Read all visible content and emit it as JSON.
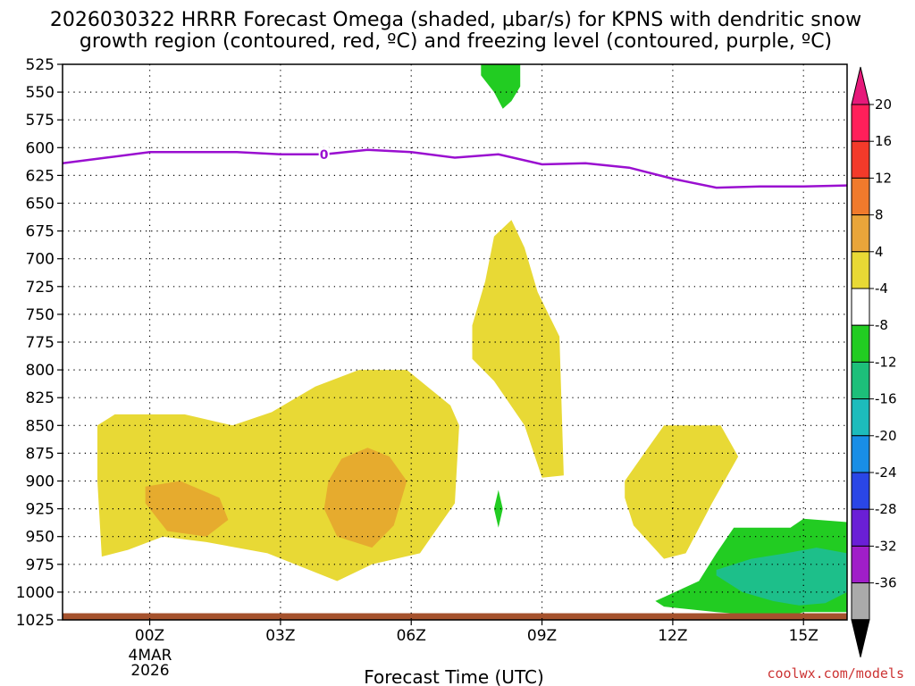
{
  "chart_data": {
    "type": "contour",
    "title_line1": "2026030322 HRRR Forecast Omega (shaded, µbar/s) for KPNS with dendritic snow",
    "title_line2": "growth region (contoured, red, ºC) and freezing level (contoured, purple, ºC)",
    "xlabel": "Forecast Time (UTC)",
    "credit": "coolwx.com/models",
    "x_ticks": [
      "00Z",
      "03Z",
      "06Z",
      "09Z",
      "12Z",
      "15Z"
    ],
    "x_tick_hours": [
      0,
      3,
      6,
      9,
      12,
      15
    ],
    "x_date_line1": "4MAR",
    "x_date_line2": "2026",
    "xlim": [
      -2,
      16
    ],
    "ylim": [
      1025,
      525
    ],
    "y_ticks": [
      "525",
      "550",
      "575",
      "600",
      "625",
      "650",
      "675",
      "700",
      "725",
      "750",
      "775",
      "800",
      "825",
      "850",
      "875",
      "900",
      "925",
      "950",
      "975",
      "1000",
      "1025"
    ],
    "y_tick_values": [
      525,
      550,
      575,
      600,
      625,
      650,
      675,
      700,
      725,
      750,
      775,
      800,
      825,
      850,
      875,
      900,
      925,
      950,
      975,
      1000,
      1025
    ],
    "colorbar": {
      "labels": [
        "20",
        "16",
        "12",
        "8",
        "4",
        "-4",
        "-8",
        "-12",
        "-16",
        "-20",
        "-24",
        "-28",
        "-32",
        "-36"
      ],
      "colors": [
        "#ff1f5a",
        "#f33a2a",
        "#f07a2c",
        "#e9a53a",
        "#e8d935",
        "#ffffff",
        "#22cc22",
        "#1dbf7a",
        "#1dbcbc",
        "#198ee6",
        "#2a46e6",
        "#6a1fd6",
        "#a01ec8",
        "#aaaaaa"
      ],
      "top_arrow_color": "#e6197a",
      "bottom_arrow_color": "#000000"
    },
    "freezing_level": {
      "label": "0",
      "color": "#9a0fd0",
      "hours": [
        -2,
        -1,
        0,
        1,
        2,
        3,
        4,
        5,
        6,
        7,
        8,
        9,
        10,
        11,
        12,
        13,
        14,
        15,
        16
      ],
      "pressures": [
        614,
        609,
        604,
        604,
        604,
        606,
        606,
        602,
        604,
        609,
        606,
        615,
        614,
        618,
        628,
        636,
        635,
        635,
        634
      ]
    },
    "omega_regions": [
      {
        "value_range": "4 to 8",
        "color": "#e8d935",
        "hours": [
          -1.2,
          -0.8,
          0.8,
          1.9,
          2.8,
          3.8,
          4.8,
          5.9,
          6.9,
          7.1,
          7.0,
          6.2,
          5.1,
          4.3,
          2.7,
          1.3,
          0.3,
          -0.5,
          -1.1,
          -1.2
        ],
        "pressures": [
          850,
          840,
          840,
          850,
          838,
          815,
          800,
          800,
          832,
          850,
          920,
          965,
          975,
          990,
          965,
          955,
          950,
          962,
          968,
          900
        ]
      },
      {
        "value_range": "8 to 12",
        "color": "#e6ab2e",
        "hours": [
          -0.1,
          0.7,
          1.6,
          1.8,
          1.3,
          0.4,
          -0.1
        ],
        "pressures": [
          905,
          900,
          915,
          935,
          950,
          945,
          920
        ]
      },
      {
        "value_range": "8 to 12",
        "color": "#e6ab2e",
        "hours": [
          4.1,
          4.4,
          5.0,
          5.5,
          5.9,
          5.6,
          5.1,
          4.3,
          4.0
        ],
        "pressures": [
          900,
          880,
          870,
          878,
          900,
          940,
          960,
          950,
          925
        ]
      },
      {
        "value_range": "4 to 8",
        "color": "#e8d935",
        "hours": [
          7.4,
          7.7,
          7.9,
          8.3,
          8.6,
          8.9,
          9.4,
          9.5,
          9.0,
          8.6,
          7.9,
          7.4
        ],
        "pressures": [
          760,
          720,
          680,
          665,
          690,
          730,
          770,
          895,
          897,
          850,
          810,
          790
        ]
      },
      {
        "value_range": "4 to 8",
        "color": "#e8d935",
        "hours": [
          10.9,
          11.4,
          11.8,
          13.1,
          13.5,
          12.9,
          12.3,
          11.8,
          11.1,
          10.9
        ],
        "pressures": [
          900,
          872,
          850,
          850,
          878,
          920,
          965,
          970,
          940,
          915
        ]
      },
      {
        "value_range": "-4 to -8",
        "color": "#22cc22",
        "hours": [
          7.6,
          8.5,
          8.5,
          8.3,
          8.1,
          7.9,
          7.6
        ],
        "pressures": [
          525,
          525,
          545,
          558,
          565,
          550,
          535
        ]
      },
      {
        "value_range": "-4 to -8",
        "color": "#22cc22",
        "hours": [
          7.9,
          8.0,
          8.1,
          8.0,
          7.9
        ],
        "pressures": [
          925,
          908,
          925,
          942,
          925
        ]
      },
      {
        "value_range": "-4 to -8",
        "color": "#22cc22",
        "hours": [
          11.6,
          12.6,
          13.0,
          13.4,
          14.7,
          15.0,
          16.0,
          16.0,
          15.0,
          14.6,
          13.0,
          11.8,
          11.6
        ],
        "pressures": [
          1008,
          990,
          965,
          942,
          942,
          934,
          937,
          1018,
          1018,
          1023,
          1018,
          1013,
          1008
        ]
      },
      {
        "value_range": "-8 to -12",
        "color": "#1dbf8a",
        "hours": [
          13.0,
          13.8,
          14.6,
          15.3,
          16.0,
          16.0,
          15.5,
          14.9,
          14.3,
          13.6,
          13.0
        ],
        "pressures": [
          980,
          970,
          965,
          960,
          965,
          1000,
          1010,
          1012,
          1008,
          1000,
          985
        ]
      }
    ],
    "ground": {
      "color": "#a5522d",
      "top_pressure": 1019
    }
  }
}
